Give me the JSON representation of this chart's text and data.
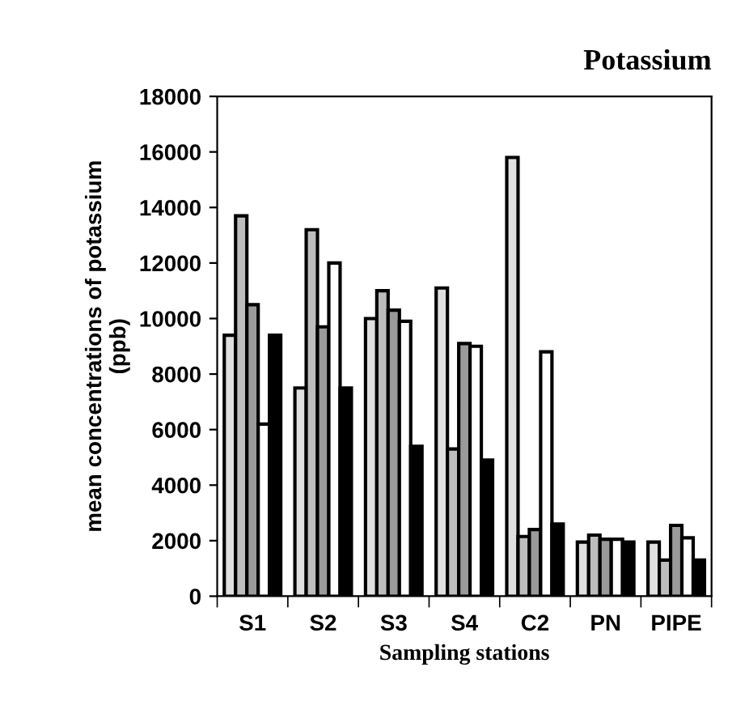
{
  "chart_data": {
    "type": "bar",
    "title": "Potassium",
    "xlabel": "Sampling stations",
    "ylabel": "mean concentrations of potassium\n(ppb)",
    "categories": [
      "S1",
      "S2",
      "S3",
      "S4",
      "C2",
      "PN",
      "PIPE"
    ],
    "series": [
      {
        "color": "#e0e0e0",
        "values": [
          9400,
          7500,
          10000,
          11100,
          15800,
          1950,
          1950
        ]
      },
      {
        "color": "#bdbdbd",
        "values": [
          13700,
          13200,
          11000,
          5300,
          2150,
          2200,
          1300
        ]
      },
      {
        "color": "#9a9a9a",
        "values": [
          10500,
          9700,
          10300,
          9100,
          2400,
          2050,
          2550
        ]
      },
      {
        "color": "#ffffff",
        "values": [
          6200,
          12000,
          9900,
          9000,
          8800,
          2050,
          2100
        ]
      },
      {
        "color": "#000000",
        "values": [
          9400,
          7500,
          5400,
          4900,
          2600,
          1950,
          1300
        ]
      }
    ],
    "ylim": [
      0,
      18000
    ],
    "yticks": [
      0,
      2000,
      4000,
      6000,
      8000,
      10000,
      12000,
      14000,
      16000,
      18000
    ],
    "grid": false,
    "legend": false
  }
}
